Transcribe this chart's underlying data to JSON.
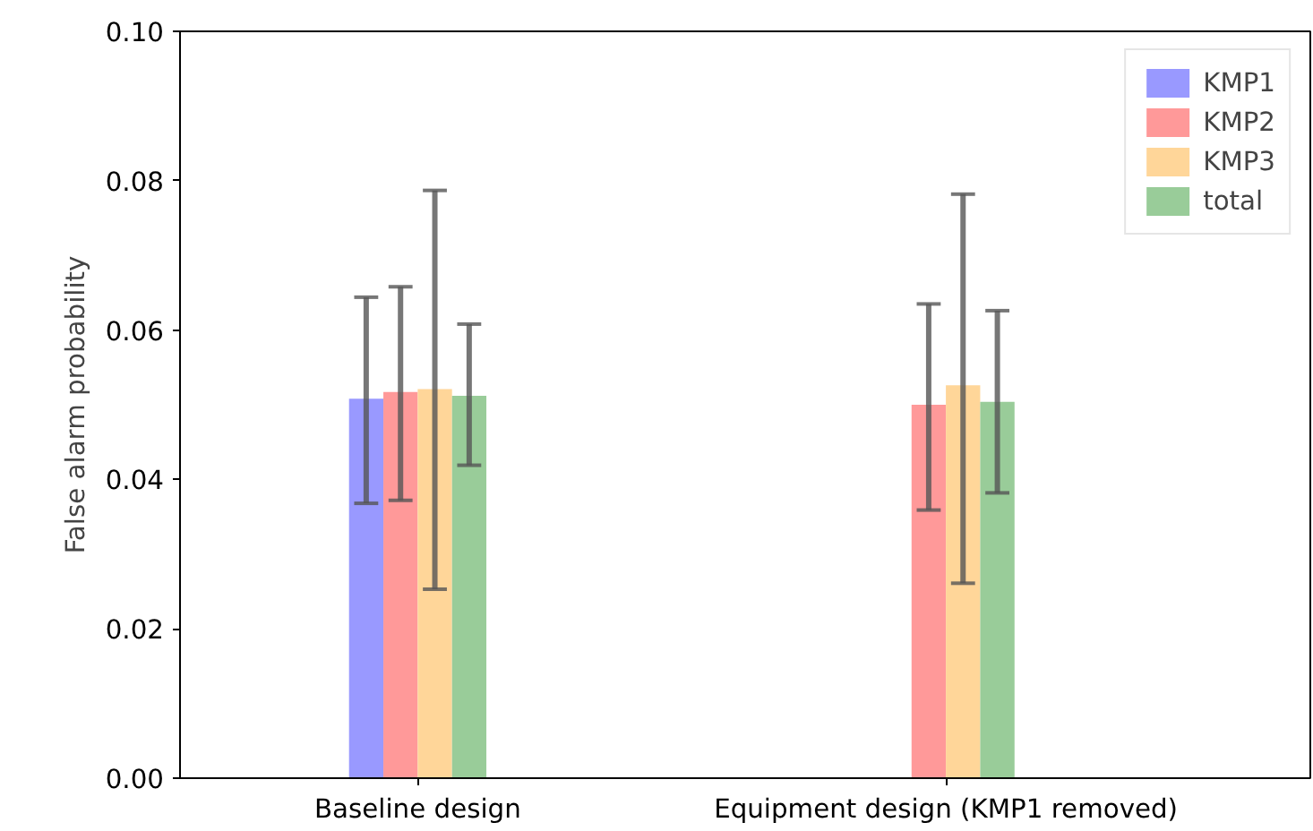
{
  "chart_data": {
    "type": "bar",
    "ylabel": "False alarm probability",
    "categories": [
      "Baseline design",
      "Equipment design (KMP1 removed)"
    ],
    "series": [
      {
        "name": "KMP1",
        "color": "#9999ff",
        "values": [
          0.0508,
          null
        ],
        "errors": [
          [
            0.0368,
            0.0644
          ],
          null
        ]
      },
      {
        "name": "KMP2",
        "color": "#ff9999",
        "values": [
          0.0517,
          0.05
        ],
        "errors": [
          [
            0.0372,
            0.0658
          ],
          [
            0.0359,
            0.0635
          ]
        ]
      },
      {
        "name": "KMP3",
        "color": "#ffd699",
        "values": [
          0.0521,
          0.0526
        ],
        "errors": [
          [
            0.0253,
            0.0787
          ],
          [
            0.0261,
            0.0782
          ]
        ]
      },
      {
        "name": "total",
        "color": "#99cc99",
        "values": [
          0.0512,
          0.0504
        ],
        "errors": [
          [
            0.0419,
            0.0608
          ],
          [
            0.0382,
            0.0626
          ]
        ]
      }
    ],
    "ylim": [
      0,
      0.1
    ],
    "yticks": [
      {
        "value": 0,
        "label": "0.00"
      },
      {
        "value": 0.02,
        "label": "0.02"
      },
      {
        "value": 0.04,
        "label": "0.04"
      },
      {
        "value": 0.06,
        "label": "0.06"
      },
      {
        "value": 0.08,
        "label": "0.08"
      },
      {
        "value": 0.1,
        "label": "0.10"
      }
    ],
    "grid": false,
    "legend": "top right"
  }
}
